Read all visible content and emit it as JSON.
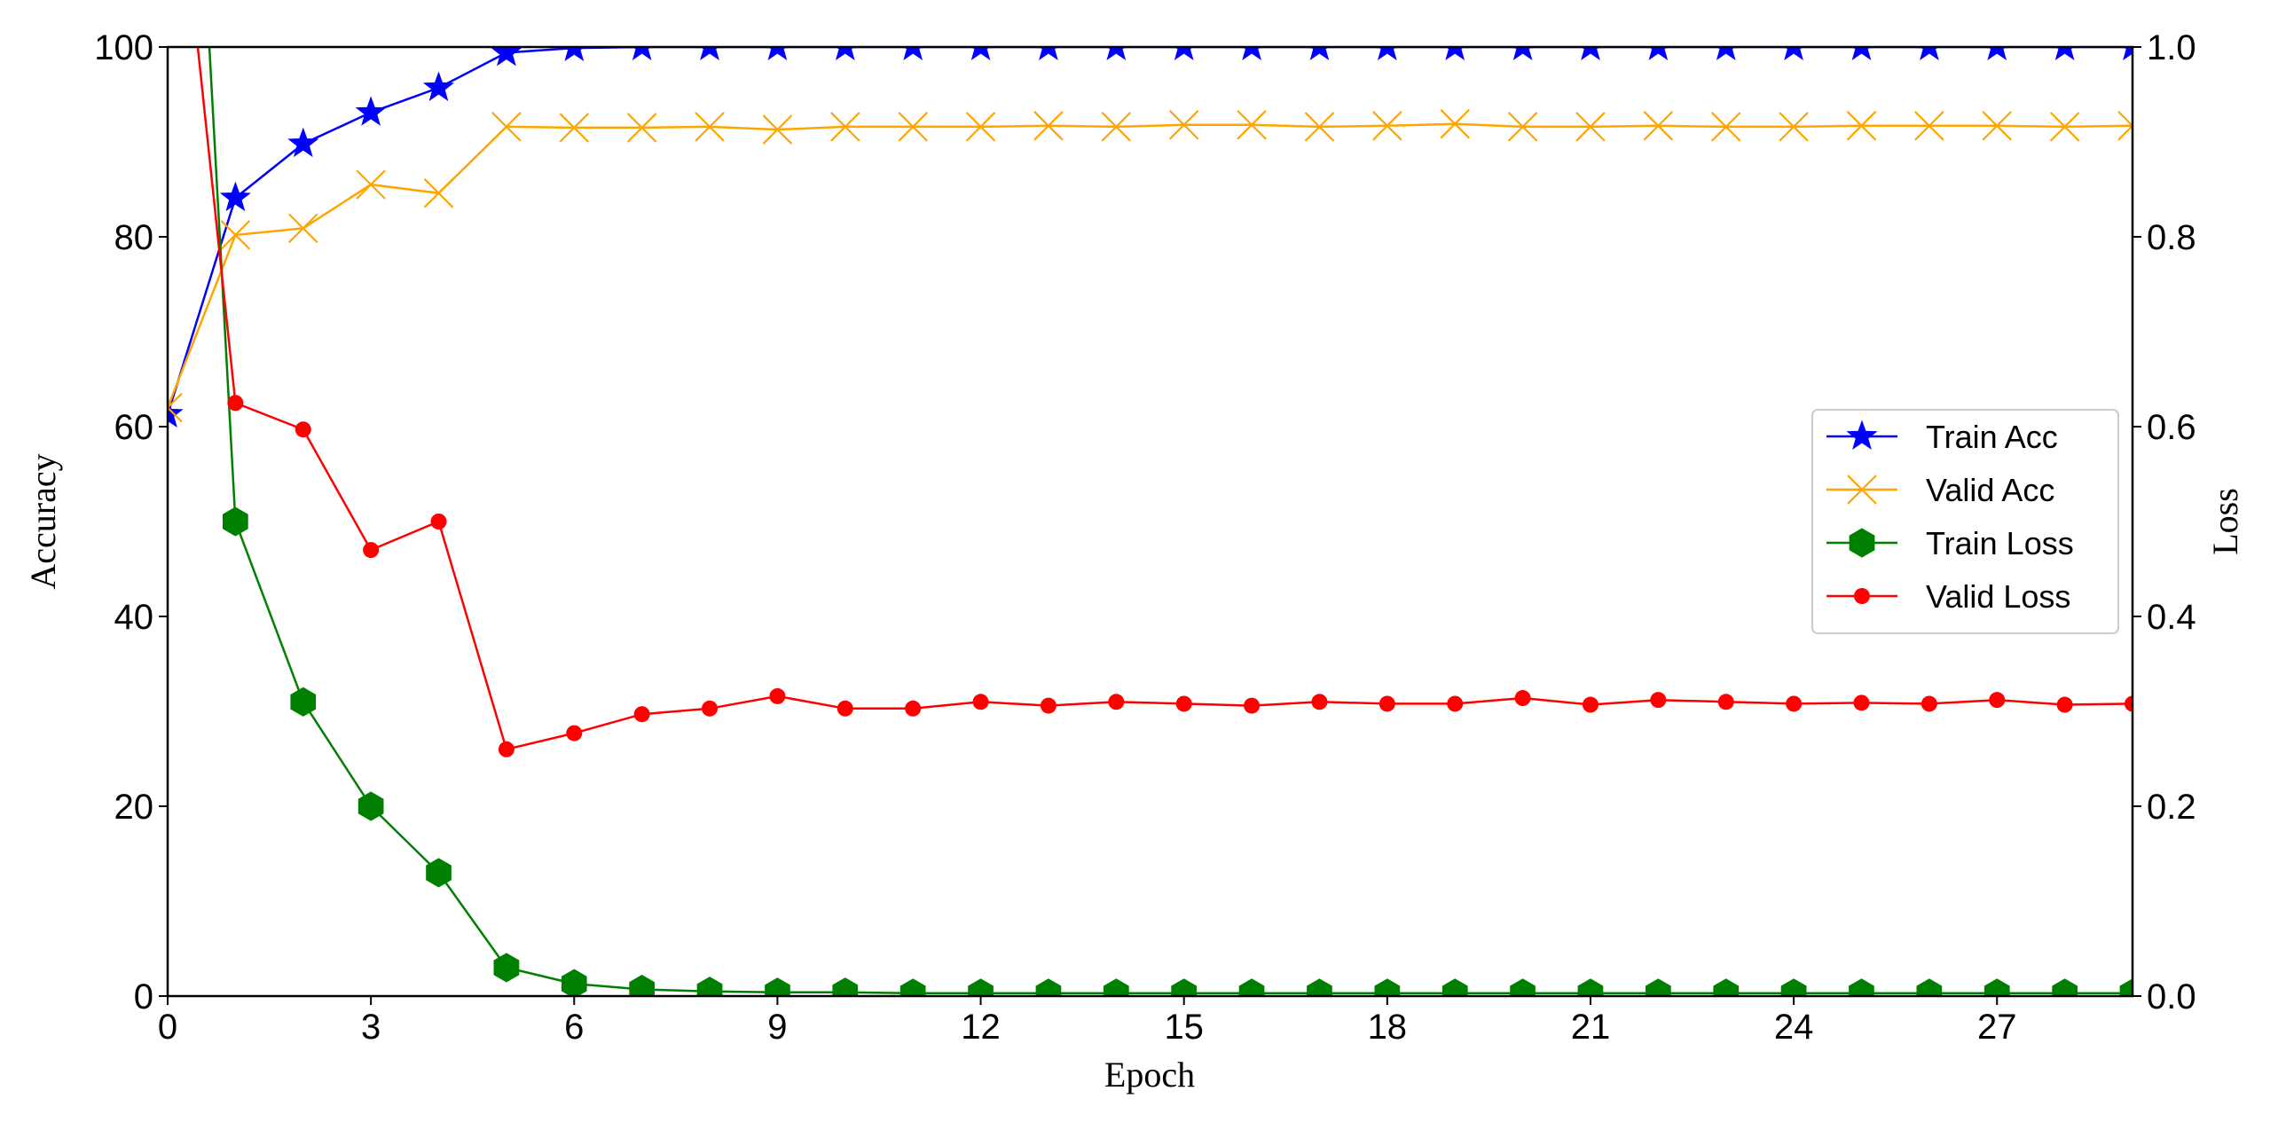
{
  "chart_data": {
    "type": "line",
    "xlabel": "Epoch",
    "ylabel_left": "Accuracy",
    "ylabel_right": "Loss",
    "xlim": [
      0,
      29
    ],
    "ylim_left": [
      0,
      100
    ],
    "ylim_right": [
      0.0,
      1.0
    ],
    "x_ticks": [
      0,
      3,
      6,
      9,
      12,
      15,
      18,
      21,
      24,
      27
    ],
    "x_tick_labels": [
      "0",
      "3",
      "6",
      "9",
      "12",
      "15",
      "18",
      "21",
      "24",
      "27"
    ],
    "y_left_ticks": [
      0,
      20,
      40,
      60,
      80,
      100
    ],
    "y_left_tick_labels": [
      "0",
      "20",
      "40",
      "60",
      "80",
      "100"
    ],
    "y_right_ticks": [
      0.0,
      0.2,
      0.4,
      0.6,
      0.8,
      1.0
    ],
    "y_right_tick_labels": [
      "0.0",
      "0.2",
      "0.4",
      "0.6",
      "0.8",
      "1.0"
    ],
    "grid": false,
    "legend_position": "center-right",
    "x": [
      0,
      1,
      2,
      3,
      4,
      5,
      6,
      7,
      8,
      9,
      10,
      11,
      12,
      13,
      14,
      15,
      16,
      17,
      18,
      19,
      20,
      21,
      22,
      23,
      24,
      25,
      26,
      27,
      28,
      29
    ],
    "series": [
      {
        "name": "Train Acc",
        "axis": "left",
        "color": "#0000ff",
        "marker": "star",
        "values": [
          61.3,
          84.1,
          89.8,
          93.1,
          95.7,
          99.4,
          99.9,
          100,
          100,
          100,
          100,
          100,
          100,
          100,
          100,
          100,
          100,
          100,
          100,
          100,
          100,
          100,
          100,
          100,
          100,
          100,
          100,
          100,
          100,
          100
        ]
      },
      {
        "name": "Valid Acc",
        "axis": "left",
        "color": "#ffa500",
        "marker": "x",
        "values": [
          62.0,
          80.2,
          80.9,
          85.5,
          84.6,
          91.6,
          91.5,
          91.5,
          91.6,
          91.3,
          91.6,
          91.6,
          91.6,
          91.7,
          91.6,
          91.8,
          91.8,
          91.6,
          91.7,
          91.9,
          91.6,
          91.6,
          91.7,
          91.6,
          91.6,
          91.7,
          91.7,
          91.7,
          91.6,
          91.7
        ]
      },
      {
        "name": "Train Loss",
        "axis": "right",
        "color": "#008000",
        "marker": "hexagon",
        "values": [
          1.8,
          0.5,
          0.31,
          0.2,
          0.13,
          0.03,
          0.013,
          0.007,
          0.005,
          0.004,
          0.004,
          0.003,
          0.003,
          0.003,
          0.003,
          0.003,
          0.003,
          0.003,
          0.003,
          0.003,
          0.003,
          0.003,
          0.003,
          0.003,
          0.003,
          0.003,
          0.003,
          0.003,
          0.003,
          0.003
        ]
      },
      {
        "name": "Valid Loss",
        "axis": "right",
        "color": "#ff0000",
        "marker": "circle",
        "values": [
          1.3,
          0.625,
          0.597,
          0.47,
          0.5,
          0.26,
          0.277,
          0.297,
          0.303,
          0.316,
          0.303,
          0.303,
          0.31,
          0.306,
          0.31,
          0.308,
          0.306,
          0.31,
          0.308,
          0.308,
          0.314,
          0.307,
          0.312,
          0.31,
          0.308,
          0.309,
          0.308,
          0.312,
          0.307,
          0.308
        ]
      }
    ]
  }
}
